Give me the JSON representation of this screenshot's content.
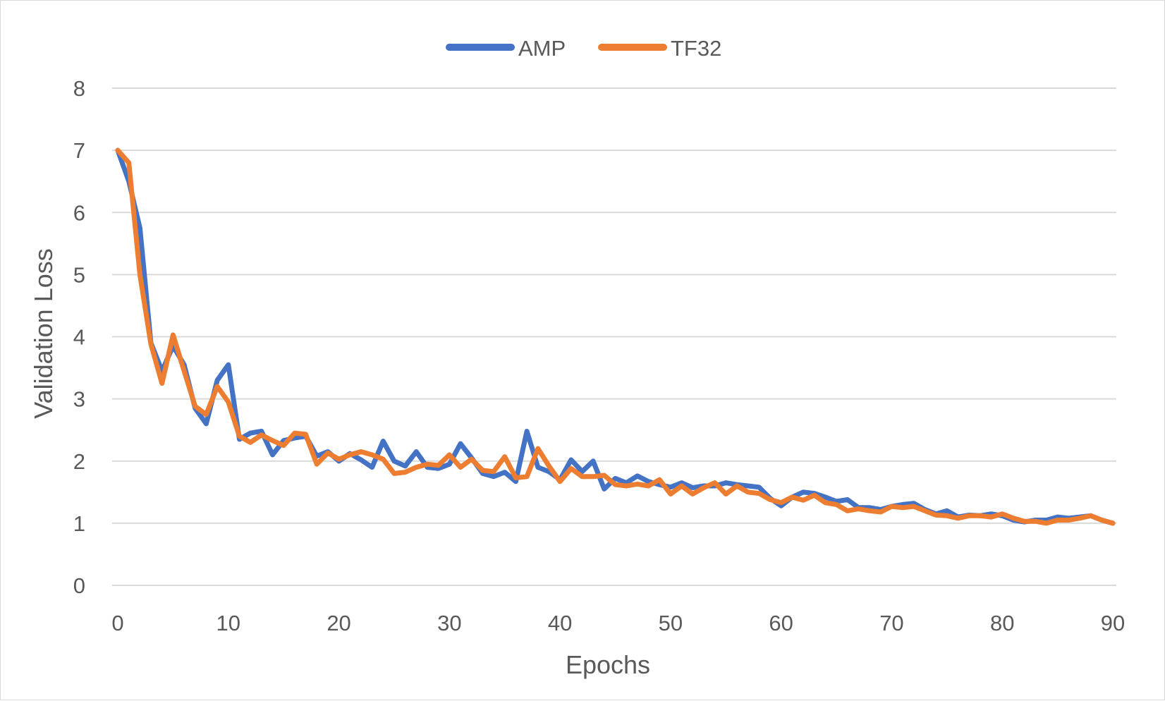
{
  "chart_data": {
    "type": "line",
    "title": "",
    "xlabel": "Epochs",
    "ylabel": "Validation Loss",
    "xlim": [
      0,
      90
    ],
    "ylim": [
      0,
      8
    ],
    "xticks": [
      0,
      10,
      20,
      30,
      40,
      50,
      60,
      70,
      80,
      90
    ],
    "yticks": [
      0,
      1,
      2,
      3,
      4,
      5,
      6,
      7,
      8
    ],
    "grid": "horizontal",
    "legend_position": "top",
    "x": [
      0,
      1,
      2,
      3,
      4,
      5,
      6,
      7,
      8,
      9,
      10,
      11,
      12,
      13,
      14,
      15,
      16,
      17,
      18,
      19,
      20,
      21,
      22,
      23,
      24,
      25,
      26,
      27,
      28,
      29,
      30,
      31,
      32,
      33,
      34,
      35,
      36,
      37,
      38,
      39,
      40,
      41,
      42,
      43,
      44,
      45,
      46,
      47,
      48,
      49,
      50,
      51,
      52,
      53,
      54,
      55,
      56,
      57,
      58,
      59,
      60,
      61,
      62,
      63,
      64,
      65,
      66,
      67,
      68,
      69,
      70,
      71,
      72,
      73,
      74,
      75,
      76,
      77,
      78,
      79,
      80,
      81,
      82,
      83,
      84,
      85,
      86,
      87,
      88,
      89,
      90
    ],
    "series": [
      {
        "name": "AMP",
        "color": "#4472c4",
        "values": [
          7.0,
          6.5,
          5.75,
          3.9,
          3.45,
          3.85,
          3.55,
          2.85,
          2.6,
          3.3,
          3.55,
          2.35,
          2.45,
          2.48,
          2.1,
          2.33,
          2.37,
          2.4,
          2.08,
          2.15,
          2.0,
          2.12,
          2.02,
          1.9,
          2.32,
          2.0,
          1.92,
          2.15,
          1.9,
          1.88,
          1.95,
          2.28,
          2.05,
          1.8,
          1.75,
          1.82,
          1.67,
          2.48,
          1.9,
          1.83,
          1.7,
          2.02,
          1.83,
          2.0,
          1.55,
          1.72,
          1.65,
          1.76,
          1.67,
          1.62,
          1.58,
          1.65,
          1.57,
          1.6,
          1.6,
          1.65,
          1.62,
          1.6,
          1.58,
          1.4,
          1.28,
          1.42,
          1.5,
          1.48,
          1.42,
          1.35,
          1.38,
          1.25,
          1.25,
          1.22,
          1.27,
          1.3,
          1.32,
          1.22,
          1.15,
          1.2,
          1.1,
          1.13,
          1.12,
          1.15,
          1.12,
          1.05,
          1.02,
          1.05,
          1.05,
          1.1,
          1.08,
          1.1,
          1.12,
          1.05,
          1.0
        ]
      },
      {
        "name": "TF32",
        "color": "#ed7d31",
        "values": [
          7.0,
          6.8,
          5.0,
          3.88,
          3.25,
          4.03,
          3.45,
          2.88,
          2.75,
          3.2,
          2.95,
          2.4,
          2.3,
          2.42,
          2.33,
          2.25,
          2.45,
          2.43,
          1.95,
          2.13,
          2.03,
          2.1,
          2.15,
          2.1,
          2.03,
          1.8,
          1.82,
          1.9,
          1.95,
          1.93,
          2.1,
          1.9,
          2.03,
          1.85,
          1.83,
          2.07,
          1.73,
          1.75,
          2.2,
          1.92,
          1.67,
          1.88,
          1.75,
          1.75,
          1.77,
          1.62,
          1.6,
          1.63,
          1.6,
          1.7,
          1.47,
          1.6,
          1.47,
          1.57,
          1.65,
          1.47,
          1.6,
          1.5,
          1.48,
          1.38,
          1.33,
          1.42,
          1.37,
          1.45,
          1.33,
          1.3,
          1.2,
          1.23,
          1.2,
          1.18,
          1.27,
          1.25,
          1.27,
          1.2,
          1.13,
          1.12,
          1.08,
          1.12,
          1.12,
          1.1,
          1.15,
          1.08,
          1.03,
          1.03,
          1.0,
          1.05,
          1.05,
          1.08,
          1.12,
          1.05,
          1.0
        ]
      }
    ]
  }
}
